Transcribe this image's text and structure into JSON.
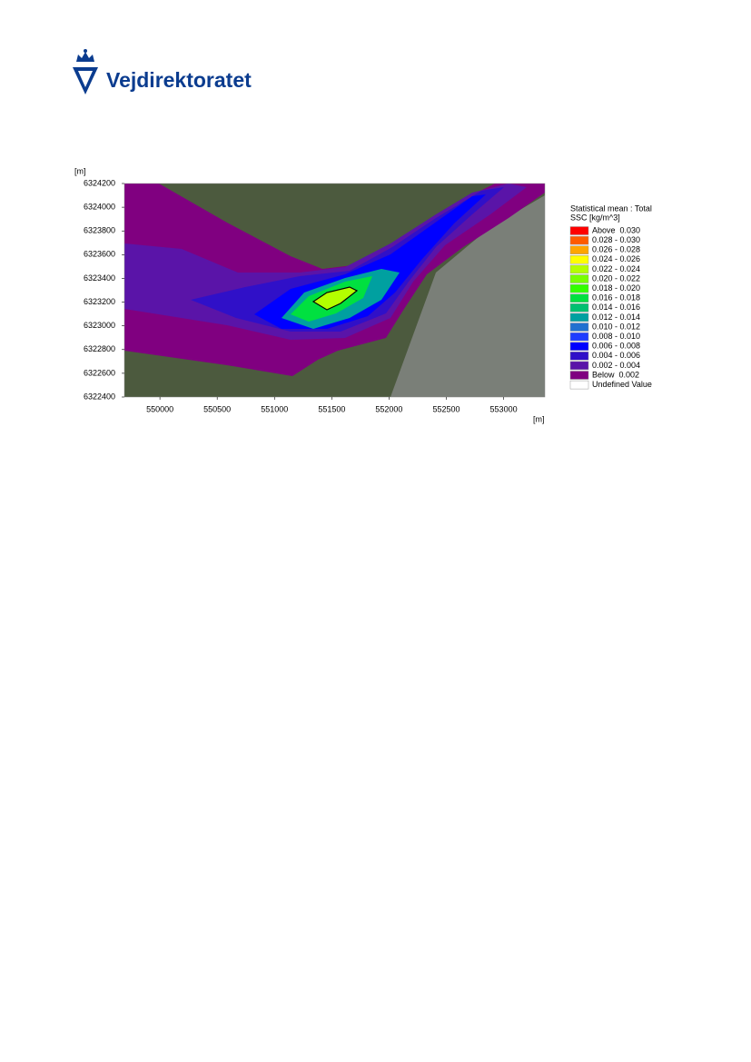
{
  "header": {
    "logo_text": "Vejdirektoratet"
  },
  "figure": {
    "y_unit": "[m]",
    "x_unit": "[m]",
    "xlim": [
      549690,
      553360
    ],
    "ylim": [
      6322400,
      6324200
    ],
    "xticks": [
      550000,
      550500,
      551000,
      551500,
      552000,
      552500,
      553000
    ],
    "yticks": [
      6322400,
      6322600,
      6322800,
      6323000,
      6323200,
      6323400,
      6323600,
      6323800,
      6324000,
      6324200
    ],
    "legend": {
      "title_lines": [
        "Statistical mean : Total",
        "SSC [kg/m^3]"
      ],
      "entries": [
        {
          "label": "Above  0.030",
          "color": "#ff0000"
        },
        {
          "label": "0.028 - 0.030",
          "color": "#ff5a00"
        },
        {
          "label": "0.026 - 0.028",
          "color": "#ffa500"
        },
        {
          "label": "0.024 - 0.026",
          "color": "#ffff00"
        },
        {
          "label": "0.022 - 0.024",
          "color": "#b4ff00"
        },
        {
          "label": "0.020 - 0.022",
          "color": "#78ff00"
        },
        {
          "label": "0.018 - 0.020",
          "color": "#32ff00"
        },
        {
          "label": "0.016 - 0.018",
          "color": "#00e040"
        },
        {
          "label": "0.014 - 0.016",
          "color": "#00c070"
        },
        {
          "label": "0.012 - 0.014",
          "color": "#00a0a0"
        },
        {
          "label": "0.010 - 0.012",
          "color": "#2070d0"
        },
        {
          "label": "0.008 - 0.010",
          "color": "#1e3cff"
        },
        {
          "label": "0.006 - 0.008",
          "color": "#0000ff"
        },
        {
          "label": "0.004 - 0.006",
          "color": "#3010c8"
        },
        {
          "label": "0.002 - 0.004",
          "color": "#5a14a8"
        },
        {
          "label": "Below  0.002",
          "color": "#800080"
        },
        {
          "label": "Undefined Value",
          "color": "#ffffff"
        }
      ]
    }
  }
}
